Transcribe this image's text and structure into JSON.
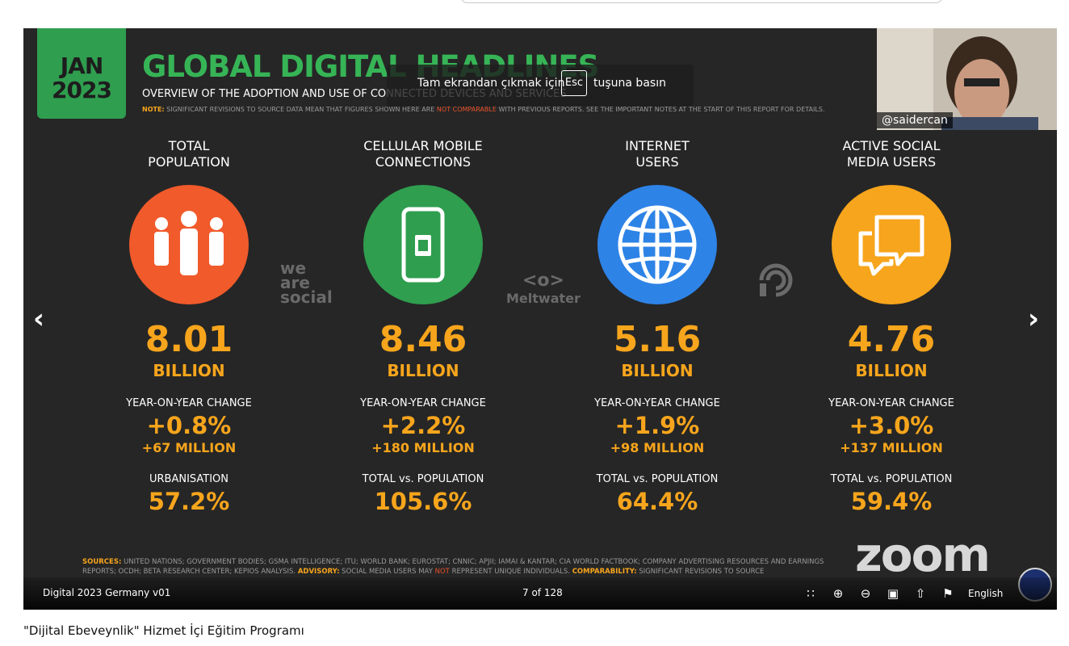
{
  "slide": {
    "date_line1": "JAN",
    "date_line2": "2023",
    "title": "GLOBAL DIGITAL HEADLINES",
    "subtitle": "OVERVIEW OF THE ADOPTION AND USE OF CONNECTED DEVICES AND SERVICES",
    "note_label": "NOTE:",
    "note_text_a": "SIGNIFICANT REVISIONS TO SOURCE DATA MEAN THAT FIGURES SHOWN HERE ARE",
    "note_highlight": "NOT COMPARABLE",
    "note_text_b": "WITH PREVIOUS REPORTS. SEE THE IMPORTANT NOTES AT THE START OF THIS REPORT FOR DETAILS.",
    "columns": [
      {
        "label_line1": "TOTAL",
        "label_line2": "POPULATION",
        "icon": "people-icon",
        "color": "#f15a2b",
        "value": "8.01",
        "unit": "BILLION",
        "change_label": "YEAR-ON-YEAR CHANGE",
        "change_pct": "+0.8%",
        "change_abs": "+67 MILLION",
        "third_label": "URBANISATION",
        "third_value": "57.2%"
      },
      {
        "label_line1": "CELLULAR MOBILE",
        "label_line2": "CONNECTIONS",
        "icon": "mobile-sim-icon",
        "color": "#2f9e4f",
        "value": "8.46",
        "unit": "BILLION",
        "change_label": "YEAR-ON-YEAR CHANGE",
        "change_pct": "+2.2%",
        "change_abs": "+180 MILLION",
        "third_label": "TOTAL vs. POPULATION",
        "third_value": "105.6%"
      },
      {
        "label_line1": "INTERNET",
        "label_line2": "USERS",
        "icon": "globe-icon",
        "color": "#2e83e6",
        "value": "5.16",
        "unit": "BILLION",
        "change_label": "YEAR-ON-YEAR CHANGE",
        "change_pct": "+1.9%",
        "change_abs": "+98 MILLION",
        "third_label": "TOTAL vs. POPULATION",
        "third_value": "64.4%"
      },
      {
        "label_line1": "ACTIVE SOCIAL",
        "label_line2": "MEDIA USERS",
        "icon": "chat-bubbles-icon",
        "color": "#f7a51c",
        "value": "4.76",
        "unit": "BILLION",
        "change_label": "YEAR-ON-YEAR CHANGE",
        "change_pct": "+3.0%",
        "change_abs": "+137 MILLION",
        "third_label": "TOTAL vs. POPULATION",
        "third_value": "59.4%"
      }
    ],
    "watermark_social_1": "we",
    "watermark_social_2": "are",
    "watermark_social_3": "social",
    "watermark_meltwater": "Meltwater",
    "sources_label": "SOURCES:",
    "sources_text": "UNITED NATIONS; GOVERNMENT BODIES; GSMA INTELLIGENCE; ITU; WORLD BANK; EUROSTAT; CNNIC; APJII; IAMAI & KANTAR; CIA WORLD FACTBOOK; COMPANY ADVERTISING RESOURCES AND EARNINGS REPORTS; OCDH; BETA RESEARCH CENTER; KEPIOS ANALYSIS.",
    "advisory_label": "ADVISORY:",
    "advisory_text": "SOCIAL MEDIA USERS MAY",
    "advisory_not": "NOT",
    "advisory_text_b": "REPRESENT UNIQUE INDIVIDUALS.",
    "comparability_label": "COMPARABILITY:",
    "comparability_text": "SIGNIFICANT REVISIONS TO SOURCE"
  },
  "fullscreen_toast": {
    "text_before": "Tam ekrandan çıkmak için",
    "key": "Esc",
    "text_after": "tuşuna basın"
  },
  "viewer": {
    "document_title": "Digital 2023 Germany v01",
    "page_indicator": "7 of 128",
    "language": "English",
    "icons": [
      "grid-icon",
      "zoom-in-icon",
      "zoom-out-icon",
      "fit-page-icon",
      "share-icon",
      "flag-icon"
    ]
  },
  "video": {
    "participant_handle": "@saidercan"
  },
  "zoom_watermark": "zoom",
  "caption": "\"Dijital Ebeveynlik\" Hizmet İçi Eğitim Programı"
}
